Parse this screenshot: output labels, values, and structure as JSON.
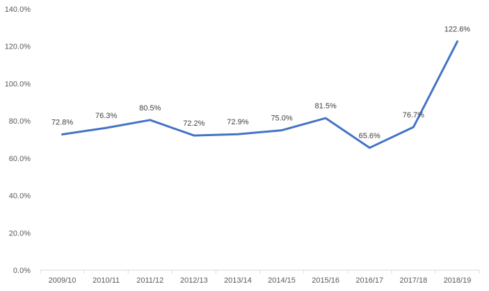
{
  "chart_data": {
    "type": "line",
    "categories": [
      "2009/10",
      "2010/11",
      "2011/12",
      "2012/13",
      "2013/14",
      "2014/15",
      "2015/16",
      "2016/17",
      "2017/18",
      "2018/19"
    ],
    "series": [
      {
        "values": [
          72.8,
          76.3,
          80.5,
          72.2,
          72.9,
          75.0,
          81.5,
          65.6,
          76.7,
          122.6
        ],
        "labels": [
          "72.8%",
          "76.3%",
          "80.5%",
          "72.2%",
          "72.9%",
          "75.0%",
          "81.5%",
          "65.6%",
          "76.7%",
          "122.6%"
        ]
      }
    ],
    "ylim": [
      0,
      140
    ],
    "yticks": [
      0,
      20,
      40,
      60,
      80,
      100,
      120,
      140
    ],
    "ytick_labels": [
      "0.0%",
      "20.0%",
      "40.0%",
      "60.0%",
      "80.0%",
      "100.0%",
      "120.0%",
      "140.0%"
    ],
    "grid": false,
    "legend": "none",
    "colors": {
      "line": "#4472C4",
      "axis": "#D9D9D9",
      "text": "#595959"
    }
  }
}
